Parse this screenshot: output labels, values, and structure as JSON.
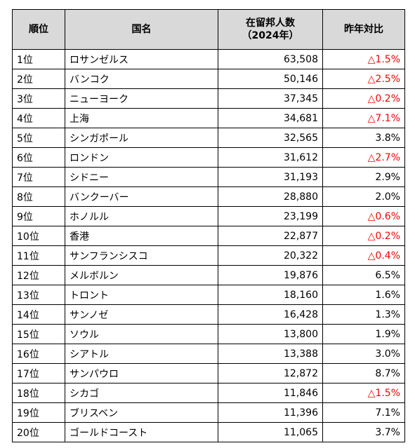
{
  "headers": {
    "rank": "順位",
    "country": "国名",
    "residents_line1": "在留邦人数",
    "residents_line2": "（2024年）",
    "yoy": "昨年対比"
  },
  "rows": [
    {
      "rank": "1位",
      "name": "ロサンゼルス",
      "count": "63,508",
      "yoy": "△1.5%",
      "up": true
    },
    {
      "rank": "2位",
      "name": "バンコク",
      "count": "50,146",
      "yoy": "△2.5%",
      "up": true
    },
    {
      "rank": "3位",
      "name": "ニューヨーク",
      "count": "37,345",
      "yoy": "△0.2%",
      "up": true
    },
    {
      "rank": "4位",
      "name": "上海",
      "count": "34,681",
      "yoy": "△7.1%",
      "up": true
    },
    {
      "rank": "5位",
      "name": "シンガポール",
      "count": "32,565",
      "yoy": "3.8%",
      "up": false
    },
    {
      "rank": "6位",
      "name": "ロンドン",
      "count": "31,612",
      "yoy": "△2.7%",
      "up": true
    },
    {
      "rank": "7位",
      "name": "シドニー",
      "count": "31,193",
      "yoy": "2.9%",
      "up": false
    },
    {
      "rank": "8位",
      "name": "バンクーバー",
      "count": "28,880",
      "yoy": "2.0%",
      "up": false
    },
    {
      "rank": "9位",
      "name": "ホノルル",
      "count": "23,199",
      "yoy": "△0.6%",
      "up": true
    },
    {
      "rank": "10位",
      "name": "香港",
      "count": "22,877",
      "yoy": "△0.2%",
      "up": true
    },
    {
      "rank": "11位",
      "name": "サンフランシスコ",
      "count": "20,322",
      "yoy": "△0.4%",
      "up": true
    },
    {
      "rank": "12位",
      "name": "メルボルン",
      "count": "19,876",
      "yoy": "6.5%",
      "up": false
    },
    {
      "rank": "13位",
      "name": "トロント",
      "count": "18,160",
      "yoy": "1.6%",
      "up": false
    },
    {
      "rank": "14位",
      "name": "サンノゼ",
      "count": "16,428",
      "yoy": "1.3%",
      "up": false
    },
    {
      "rank": "15位",
      "name": "ソウル",
      "count": "13,800",
      "yoy": "1.9%",
      "up": false
    },
    {
      "rank": "16位",
      "name": "シアトル",
      "count": "13,388",
      "yoy": "3.0%",
      "up": false
    },
    {
      "rank": "17位",
      "name": "サンパウロ",
      "count": "12,872",
      "yoy": "8.7%",
      "up": false
    },
    {
      "rank": "18位",
      "name": "シカゴ",
      "count": "11,846",
      "yoy": "△1.5%",
      "up": true
    },
    {
      "rank": "19位",
      "name": "ブリスベン",
      "count": "11,396",
      "yoy": "7.1%",
      "up": false
    },
    {
      "rank": "20位",
      "name": "ゴールドコースト",
      "count": "11,065",
      "yoy": "3.7%",
      "up": false
    }
  ],
  "colors": {
    "header_bg": "#d9d9d9",
    "negative_red": "#ff0000",
    "border": "#000000"
  }
}
